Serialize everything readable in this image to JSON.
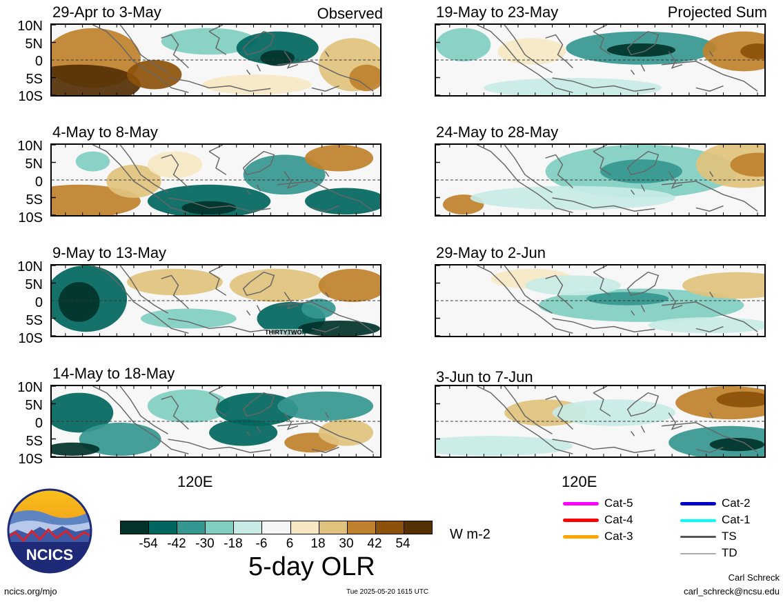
{
  "header": {
    "observed_label": "Observed",
    "projected_label": "Projected Sum"
  },
  "lat_labels": [
    "10N",
    "5N",
    "0",
    "5S",
    "10S"
  ],
  "lon_label": "120E",
  "panels": {
    "observed": [
      {
        "title": "29-Apr to 3-May"
      },
      {
        "title": "4-May to 8-May"
      },
      {
        "title": "9-May to 13-May",
        "annotation": "THIRTYTWO"
      },
      {
        "title": "14-May to 18-May"
      }
    ],
    "projected": [
      {
        "title": "19-May to 23-May"
      },
      {
        "title": "24-May to 28-May"
      },
      {
        "title": "29-May to 2-Jun"
      },
      {
        "title": "3-Jun to 7-Jun"
      }
    ]
  },
  "colorbar": {
    "colors": [
      "#01332b",
      "#01665e",
      "#35978f",
      "#80cdc1",
      "#c7eae5",
      "#f5f5f5",
      "#f6e8c3",
      "#dfc27d",
      "#bf812d",
      "#8c510a",
      "#543005"
    ],
    "ticks": [
      "-54",
      "-42",
      "-30",
      "-18",
      "-6",
      "6",
      "18",
      "30",
      "42",
      "54"
    ],
    "units": "W m-2",
    "title": "5-day OLR"
  },
  "legend": [
    {
      "label": "Cat-5",
      "color": "#ff00ff",
      "weight": 5
    },
    {
      "label": "Cat-4",
      "color": "#ff0000",
      "weight": 5
    },
    {
      "label": "Cat-3",
      "color": "#ffa500",
      "weight": 5
    },
    {
      "label": "Cat-2",
      "color": "#0000cc",
      "weight": 5
    },
    {
      "label": "Cat-1",
      "color": "#00ffff",
      "weight": 4
    },
    {
      "label": "TS",
      "color": "#555555",
      "weight": 3
    },
    {
      "label": "TD",
      "color": "#aaaaaa",
      "weight": 2
    }
  ],
  "logo": {
    "text": "NCICS"
  },
  "footer": {
    "url": "ncics.org/mjo",
    "timestamp": "Tue 2025-05-20 1615 UTC",
    "author": "Carl Schreck",
    "email": "carl_schreck@ncsu.edu"
  }
}
